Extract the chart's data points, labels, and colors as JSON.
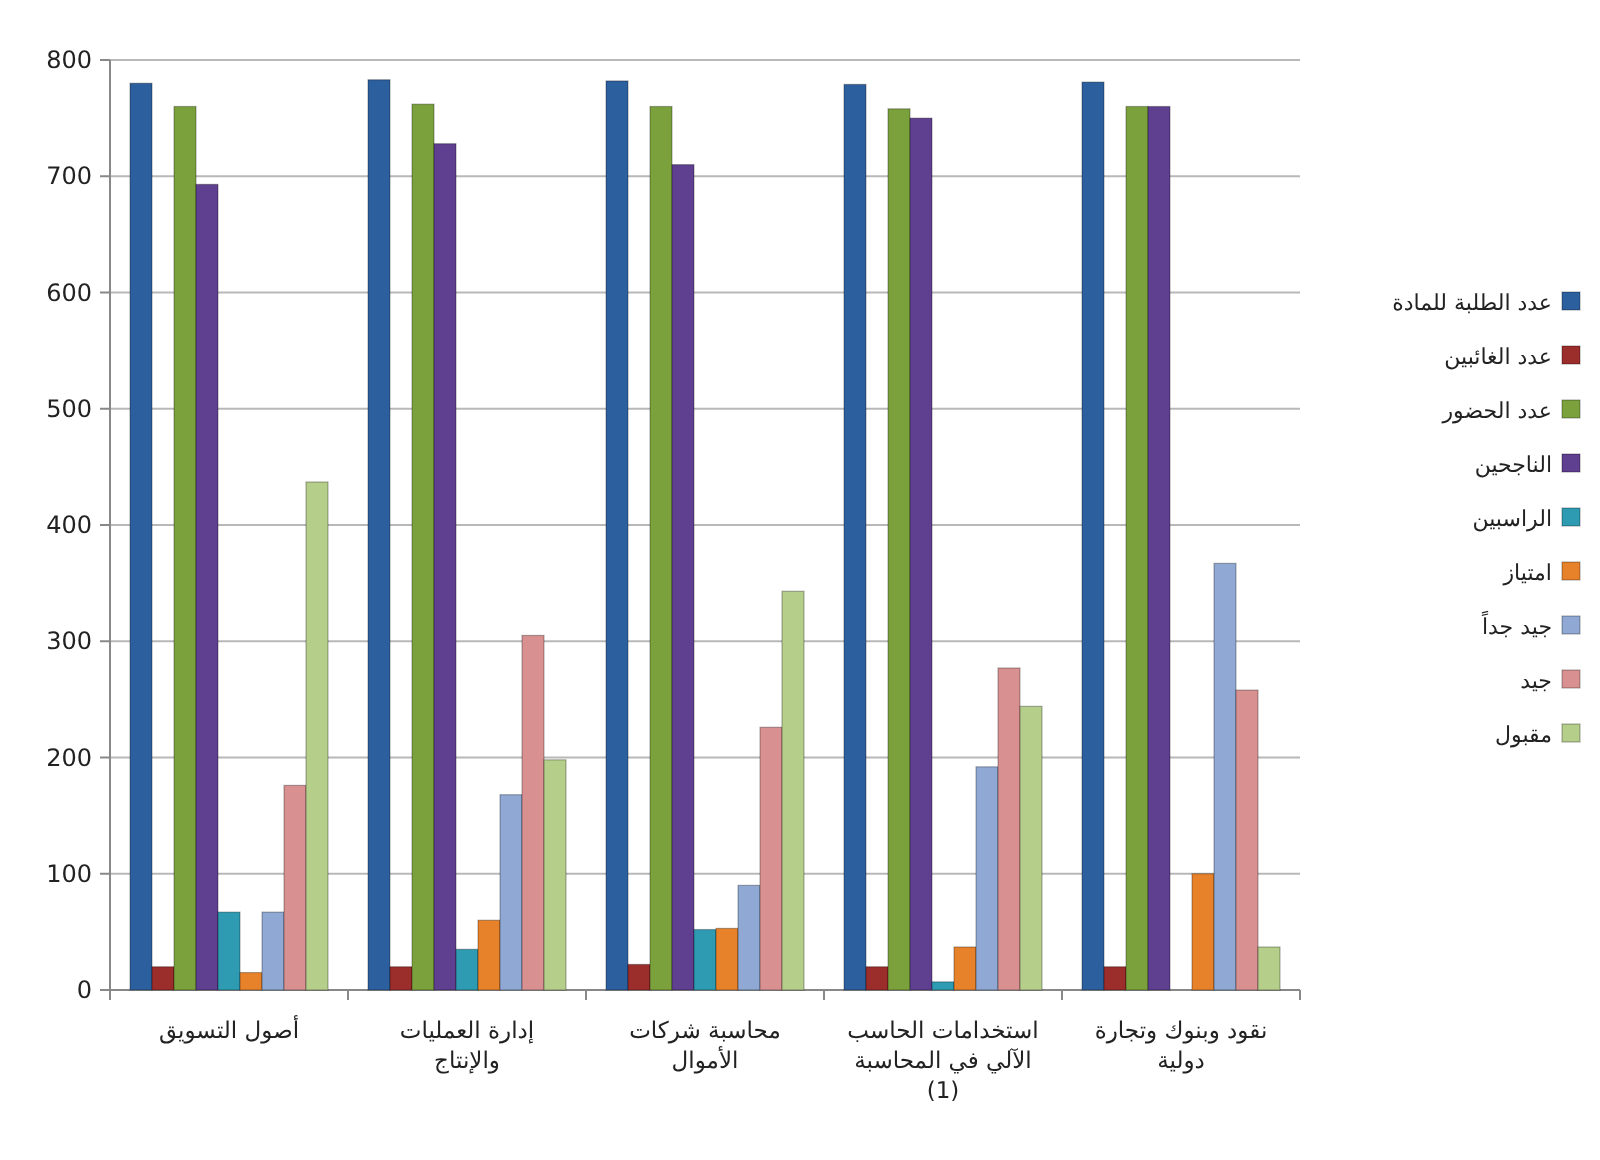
{
  "chart_data": {
    "type": "bar",
    "categories": [
      "أصول التسويق",
      "إدارة العمليات والإنتاج",
      "محاسبة شركات الأموال",
      "استخدامات الحاسب الآلي في المحاسبة (1)",
      "نقود وبنوك وتجارة دولية"
    ],
    "series": [
      {
        "name": "عدد الطلبة للمادة",
        "color": "#2c5f9e",
        "values": [
          780,
          783,
          782,
          779,
          781
        ]
      },
      {
        "name": "عدد الغائبين",
        "color": "#9b2d2a",
        "values": [
          20,
          20,
          22,
          20,
          20
        ]
      },
      {
        "name": "عدد الحضور",
        "color": "#7ba13d",
        "values": [
          760,
          762,
          760,
          758,
          760
        ]
      },
      {
        "name": "الناجحين",
        "color": "#5f3f8f",
        "values": [
          693,
          728,
          710,
          750,
          760
        ]
      },
      {
        "name": "الراسبين",
        "color": "#2e9bb3",
        "values": [
          67,
          35,
          52,
          7,
          0
        ]
      },
      {
        "name": "امتياز",
        "color": "#e8822a",
        "values": [
          15,
          60,
          53,
          37,
          100
        ]
      },
      {
        "name": "جيد جداً",
        "color": "#8fa8d4",
        "values": [
          67,
          168,
          90,
          192,
          367
        ]
      },
      {
        "name": "جيد",
        "color": "#d89090",
        "values": [
          176,
          305,
          226,
          277,
          258
        ]
      },
      {
        "name": "مقبول",
        "color": "#b5cf8a",
        "values": [
          437,
          198,
          343,
          244,
          37
        ]
      }
    ],
    "ylim": [
      0,
      800
    ],
    "yticks": [
      0,
      100,
      200,
      300,
      400,
      500,
      600,
      700,
      800
    ],
    "grid": "y",
    "legend": "right"
  }
}
